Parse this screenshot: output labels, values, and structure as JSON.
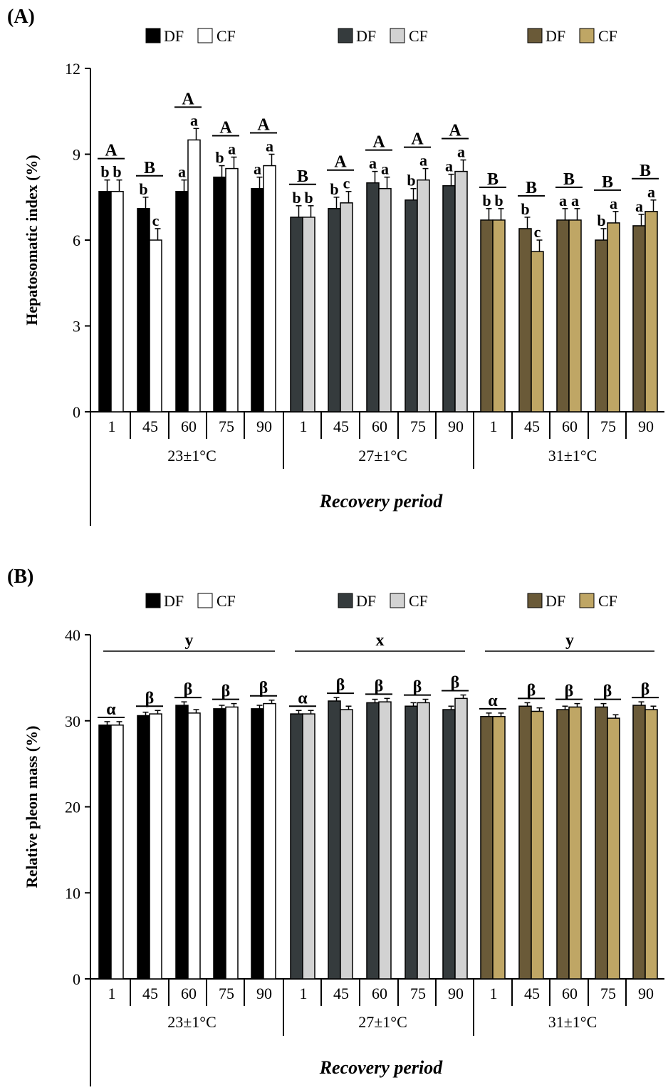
{
  "colors": {
    "g23_DF": "#000000",
    "g23_CF": "#ffffff",
    "g27_DF": "#353b3d",
    "g27_CF": "#d2d2d2",
    "g31_DF": "#6a5a38",
    "g31_CF": "#bfa665"
  },
  "chart_data": [
    {
      "type": "bar",
      "panel_label": "(A)",
      "ylabel": "Hepatosomatic index (%)",
      "xlabel": "Recovery period",
      "ylim": [
        0,
        12
      ],
      "yticks": [
        0,
        3,
        6,
        9,
        12
      ],
      "legend": [
        {
          "DF": "DF",
          "CF": "CF"
        },
        {
          "DF": "DF",
          "CF": "CF"
        },
        {
          "DF": "DF",
          "CF": "CF"
        }
      ],
      "temperature_groups": [
        {
          "name": "23±1°C",
          "periods": [
            "1",
            "45",
            "60",
            "75",
            "90"
          ],
          "DF": [
            7.7,
            7.1,
            7.7,
            8.2,
            7.8
          ],
          "CF": [
            7.7,
            6.0,
            9.5,
            8.5,
            8.6
          ],
          "DF_err": [
            0.4,
            0.4,
            0.4,
            0.4,
            0.4
          ],
          "CF_err": [
            0.4,
            0.4,
            0.4,
            0.4,
            0.4
          ],
          "DF_letters": [
            "b",
            "b",
            "a",
            "b",
            "a"
          ],
          "CF_letters": [
            "b",
            "c",
            "a",
            "a",
            "a"
          ],
          "period_letters": [
            "A",
            "B",
            "A",
            "A",
            "A"
          ]
        },
        {
          "name": "27±1°C",
          "periods": [
            "1",
            "45",
            "60",
            "75",
            "90"
          ],
          "DF": [
            6.8,
            7.1,
            8.0,
            7.4,
            7.9
          ],
          "CF": [
            6.8,
            7.3,
            7.8,
            8.1,
            8.4
          ],
          "DF_err": [
            0.4,
            0.4,
            0.4,
            0.4,
            0.4
          ],
          "CF_err": [
            0.4,
            0.4,
            0.4,
            0.4,
            0.4
          ],
          "DF_letters": [
            "b",
            "b",
            "a",
            "b",
            "a"
          ],
          "CF_letters": [
            "b",
            "c",
            "a",
            "a",
            "a"
          ],
          "period_letters": [
            "B",
            "A",
            "A",
            "A",
            "A"
          ]
        },
        {
          "name": "31±1°C",
          "periods": [
            "1",
            "45",
            "60",
            "75",
            "90"
          ],
          "DF": [
            6.7,
            6.4,
            6.7,
            6.0,
            6.5
          ],
          "CF": [
            6.7,
            5.6,
            6.7,
            6.6,
            7.0
          ],
          "DF_err": [
            0.4,
            0.4,
            0.4,
            0.4,
            0.4
          ],
          "CF_err": [
            0.4,
            0.4,
            0.4,
            0.4,
            0.4
          ],
          "DF_letters": [
            "b",
            "b",
            "a",
            "b",
            "a"
          ],
          "CF_letters": [
            "b",
            "c",
            "a",
            "a",
            "a"
          ],
          "period_letters": [
            "B",
            "B",
            "B",
            "B",
            "B"
          ]
        }
      ]
    },
    {
      "type": "bar",
      "panel_label": "(B)",
      "ylabel": "Relative pleon mass  (%)",
      "xlabel": "Recovery period",
      "ylim": [
        0,
        40
      ],
      "yticks": [
        0,
        10,
        20,
        30,
        40
      ],
      "legend": [
        {
          "DF": "DF",
          "CF": "CF"
        },
        {
          "DF": "DF",
          "CF": "CF"
        },
        {
          "DF": "DF",
          "CF": "CF"
        }
      ],
      "temperature_groups": [
        {
          "name": "23±1°C",
          "group_letter": "y",
          "periods": [
            "1",
            "45",
            "60",
            "75",
            "90"
          ],
          "DF": [
            29.5,
            30.6,
            31.8,
            31.4,
            31.4
          ],
          "CF": [
            29.5,
            30.8,
            30.9,
            31.6,
            32.0
          ],
          "DF_err": [
            0.4,
            0.4,
            0.4,
            0.4,
            0.4
          ],
          "CF_err": [
            0.4,
            0.4,
            0.4,
            0.4,
            0.4
          ],
          "period_letters": [
            "α",
            "β",
            "β",
            "β",
            "β"
          ]
        },
        {
          "name": "27±1°C",
          "group_letter": "x",
          "periods": [
            "1",
            "45",
            "60",
            "75",
            "90"
          ],
          "DF": [
            30.8,
            32.3,
            32.1,
            31.7,
            31.3
          ],
          "CF": [
            30.8,
            31.3,
            32.2,
            32.1,
            32.6
          ],
          "DF_err": [
            0.4,
            0.4,
            0.4,
            0.4,
            0.4
          ],
          "CF_err": [
            0.4,
            0.4,
            0.4,
            0.4,
            0.4
          ],
          "period_letters": [
            "α",
            "β",
            "β",
            "β",
            "β"
          ]
        },
        {
          "name": "31±1°C",
          "group_letter": "y",
          "periods": [
            "1",
            "45",
            "60",
            "75",
            "90"
          ],
          "DF": [
            30.5,
            31.7,
            31.3,
            31.6,
            31.8
          ],
          "CF": [
            30.5,
            31.1,
            31.6,
            30.3,
            31.3
          ],
          "DF_err": [
            0.4,
            0.4,
            0.4,
            0.4,
            0.4
          ],
          "CF_err": [
            0.4,
            0.4,
            0.4,
            0.4,
            0.4
          ],
          "period_letters": [
            "α",
            "β",
            "β",
            "β",
            "β"
          ]
        }
      ]
    }
  ]
}
